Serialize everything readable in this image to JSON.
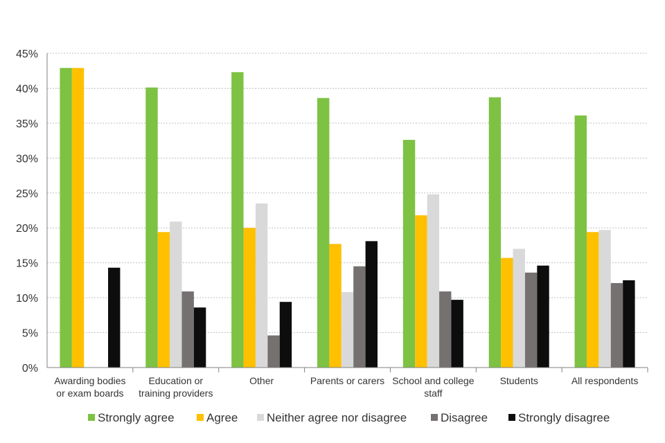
{
  "chart_data": {
    "type": "bar",
    "title": "",
    "xlabel": "",
    "ylabel": "",
    "ylim": [
      0,
      45
    ],
    "grid": true,
    "legend_position": "bottom",
    "y_ticks": [
      "0%",
      "5%",
      "10%",
      "15%",
      "20%",
      "25%",
      "30%",
      "35%",
      "40%",
      "45%"
    ],
    "categories": [
      [
        "Awarding bodies",
        "or exam boards"
      ],
      [
        "Education or",
        "training providers"
      ],
      [
        "Other"
      ],
      [
        "Parents or carers"
      ],
      [
        "School and college",
        "staff"
      ],
      [
        "Students"
      ],
      [
        "All respondents"
      ]
    ],
    "series": [
      {
        "name": "Strongly agree",
        "color": "#7dc242",
        "values": [
          42.9,
          40.1,
          42.3,
          38.6,
          32.6,
          38.7,
          36.1
        ]
      },
      {
        "name": "Agree",
        "color": "#ffc000",
        "values": [
          42.9,
          19.4,
          20.0,
          17.7,
          21.8,
          15.7,
          19.4
        ]
      },
      {
        "name": "Neither agree nor disagree",
        "color": "#d9d9d9",
        "values": [
          0,
          20.9,
          23.5,
          10.8,
          24.8,
          17.0,
          19.7
        ]
      },
      {
        "name": "Disagree",
        "color": "#767171",
        "values": [
          0,
          10.9,
          4.6,
          14.5,
          10.9,
          13.6,
          12.1
        ]
      },
      {
        "name": "Strongly disagree",
        "color": "#0d0d0d",
        "values": [
          14.3,
          8.6,
          9.4,
          18.1,
          9.7,
          14.6,
          12.5
        ]
      }
    ]
  }
}
